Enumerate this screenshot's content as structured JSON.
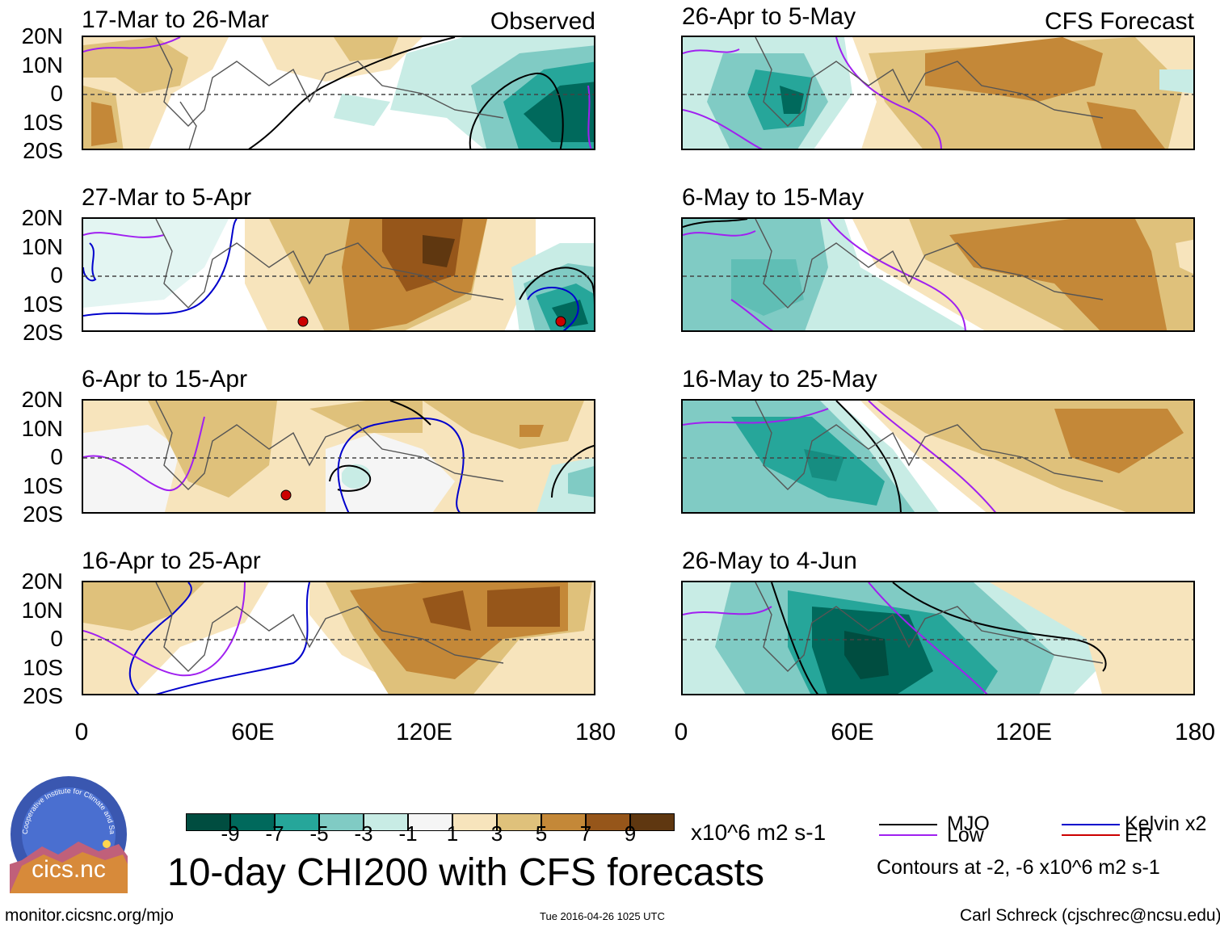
{
  "observed_label": "Observed",
  "forecast_label": "CFS Forecast",
  "panels": [
    {
      "title": "17-Mar to 26-Mar"
    },
    {
      "title": "27-Mar to 5-Apr"
    },
    {
      "title": "6-Apr to 15-Apr"
    },
    {
      "title": "16-Apr to 25-Apr"
    },
    {
      "title": "26-Apr to 5-May"
    },
    {
      "title": "6-May to 15-May"
    },
    {
      "title": "16-May to 25-May"
    },
    {
      "title": "26-May to 4-Jun"
    }
  ],
  "y_ticks": [
    "20N",
    "10N",
    "0",
    "10S",
    "20S"
  ],
  "x_ticks": [
    "0",
    "60E",
    "120E",
    "180"
  ],
  "colorbar": {
    "colors": [
      "#004d40",
      "#00695c",
      "#26a69a",
      "#80cbc4",
      "#c8ece5",
      "#f5f5f5",
      "#f7e4bc",
      "#dfc17b",
      "#c48838",
      "#96561a",
      "#5f3710"
    ],
    "tick_labels": [
      "-9",
      "-7",
      "-5",
      "-3",
      "-1",
      "1",
      "3",
      "5",
      "7",
      "9"
    ],
    "units": "x10^6 m2 s-1"
  },
  "main_title": "10-day CHI200 with CFS forecasts",
  "legend": {
    "mjo": {
      "label": "MJO",
      "color": "#000000"
    },
    "kelvin": {
      "label": "Kelvin x2",
      "color": "#0000cc"
    },
    "low": {
      "label": "Low",
      "color": "#a020f0"
    },
    "er": {
      "label": "ER",
      "color": "#cc0000"
    },
    "contours_note": "Contours at -2, -6 x10^6 m2 s-1"
  },
  "logo_text": "cics.nc",
  "logo_ring_text": "Cooperative Institute for Climate and Satellites",
  "footer": {
    "url": "monitor.cicsnc.org/mjo",
    "timestamp": "Tue 2016-04-26 1025 UTC",
    "author": "Carl Schreck (cjschrec@ncsu.edu)"
  }
}
